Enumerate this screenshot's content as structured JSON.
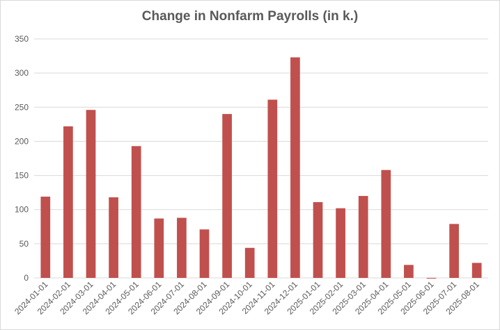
{
  "chart_data": {
    "type": "bar",
    "title": "Change in Nonfarm Payrolls (in k.)",
    "xlabel": "",
    "ylabel": "",
    "categories": [
      "2024-01-01",
      "2024-02-01",
      "2024-03-01",
      "2024-04-01",
      "2024-05-01",
      "2024-06-01",
      "2024-07-01",
      "2024-08-01",
      "2024-09-01",
      "2024-10-01",
      "2024-11-01",
      "2024-12-01",
      "2025-01-01",
      "2025-02-01",
      "2025-03-01",
      "2025-04-01",
      "2025-05-01",
      "2025-06-01",
      "2025-07-01",
      "2025-08-01"
    ],
    "values": [
      119,
      222,
      246,
      118,
      193,
      87,
      88,
      71,
      240,
      44,
      261,
      323,
      111,
      102,
      120,
      158,
      19,
      -1,
      79,
      22
    ],
    "ylim": [
      0,
      350
    ],
    "yticks": [
      0,
      50,
      100,
      150,
      200,
      250,
      300,
      350
    ],
    "grid": true,
    "legend": "none",
    "bar_color": "#c0504d"
  }
}
